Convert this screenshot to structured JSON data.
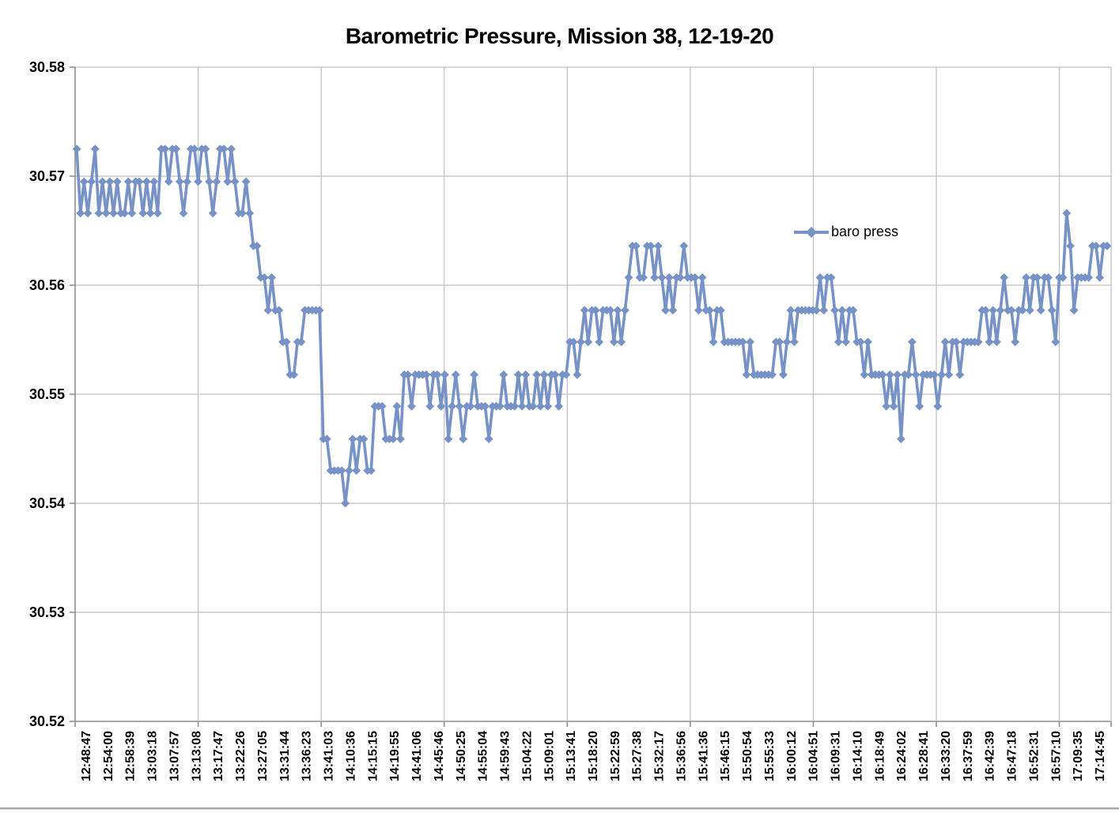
{
  "title": "Barometric Pressure, Mission 38, 12-19-20",
  "legend": {
    "label": "baro press"
  },
  "chart_data": {
    "type": "line",
    "title": "Barometric Pressure, Mission 38, 12-19-20",
    "xlabel": "",
    "ylabel": "",
    "ylim": [
      30.52,
      30.58
    ],
    "ytick_labels": [
      "30.58",
      "30.57",
      "30.56",
      "30.55",
      "30.54",
      "30.53",
      "30.52"
    ],
    "grid": true,
    "legend_position": "center-right",
    "marker": "diamond",
    "colors": {
      "series": "#7692c6",
      "gridline": "#bfbfbf",
      "axis": "#8f8f8f",
      "text": "#000000"
    },
    "categories": [
      "12:48:47",
      "12:54:00",
      "12:58:39",
      "13:03:18",
      "13:07:57",
      "13:13:08",
      "13:17:47",
      "13:22:26",
      "13:27:05",
      "13:31:44",
      "13:36:23",
      "13:41:03",
      "14:10:36",
      "14:15:15",
      "14:19:55",
      "14:41:06",
      "14:45:46",
      "14:50:25",
      "14:55:04",
      "14:59:43",
      "15:04:22",
      "15:09:01",
      "15:13:41",
      "15:18:20",
      "15:22:59",
      "15:27:38",
      "15:32:17",
      "15:36:56",
      "15:41:36",
      "15:46:15",
      "15:50:54",
      "15:55:33",
      "16:00:12",
      "16:04:51",
      "16:09:31",
      "16:14:10",
      "16:18:49",
      "16:24:02",
      "16:28:41",
      "16:33:20",
      "16:37:59",
      "16:42:39",
      "16:47:18",
      "16:52:31",
      "16:57:10",
      "17:09:35",
      "17:14:45"
    ],
    "series": [
      {
        "name": "baro press",
        "quantized_levels": [
          30.54,
          30.543,
          30.5459,
          30.5489,
          30.5518,
          30.5548,
          30.5577,
          30.5607,
          30.5636,
          30.5666,
          30.5695,
          30.5725
        ],
        "values_level_index": [
          11,
          9,
          10,
          9,
          10,
          11,
          9,
          10,
          9,
          10,
          9,
          10,
          9,
          9,
          10,
          9,
          10,
          10,
          9,
          10,
          9,
          10,
          9,
          11,
          11,
          10,
          11,
          11,
          10,
          9,
          10,
          11,
          11,
          10,
          11,
          11,
          10,
          9,
          10,
          11,
          11,
          10,
          11,
          10,
          9,
          9,
          10,
          9,
          8,
          8,
          7,
          7,
          6,
          7,
          6,
          6,
          5,
          5,
          4,
          4,
          5,
          5,
          6,
          6,
          6,
          6,
          6,
          2,
          2,
          1,
          1,
          1,
          1,
          0,
          1,
          2,
          1,
          2,
          2,
          1,
          1,
          3,
          3,
          3,
          2,
          2,
          2,
          3,
          2,
          4,
          4,
          3,
          4,
          4,
          4,
          4,
          3,
          4,
          4,
          3,
          4,
          2,
          3,
          4,
          3,
          2,
          3,
          3,
          4,
          3,
          3,
          3,
          2,
          3,
          3,
          3,
          4,
          3,
          3,
          3,
          4,
          3,
          4,
          3,
          3,
          4,
          3,
          4,
          3,
          4,
          4,
          3,
          4,
          4,
          5,
          5,
          4,
          5,
          6,
          5,
          6,
          6,
          5,
          6,
          6,
          6,
          5,
          6,
          5,
          6,
          7,
          8,
          8,
          7,
          7,
          8,
          8,
          7,
          8,
          7,
          6,
          7,
          6,
          7,
          7,
          8,
          7,
          7,
          7,
          6,
          7,
          6,
          6,
          5,
          6,
          6,
          5,
          5,
          5,
          5,
          5,
          5,
          4,
          5,
          4,
          4,
          4,
          4,
          4,
          4,
          5,
          5,
          4,
          5,
          6,
          5,
          6,
          6,
          6,
          6,
          6,
          6,
          7,
          6,
          7,
          7,
          6,
          5,
          6,
          5,
          6,
          6,
          5,
          5,
          4,
          5,
          4,
          4,
          4,
          4,
          3,
          4,
          3,
          4,
          2,
          4,
          4,
          5,
          4,
          3,
          4,
          4,
          4,
          4,
          3,
          4,
          5,
          4,
          5,
          5,
          4,
          5,
          5,
          5,
          5,
          5,
          6,
          6,
          5,
          6,
          5,
          6,
          7,
          6,
          6,
          5,
          6,
          6,
          7,
          6,
          7,
          7,
          6,
          7,
          7,
          6,
          5,
          7,
          7,
          9,
          8,
          6,
          7,
          7,
          7,
          7,
          8,
          8,
          7,
          8,
          8
        ]
      }
    ]
  }
}
